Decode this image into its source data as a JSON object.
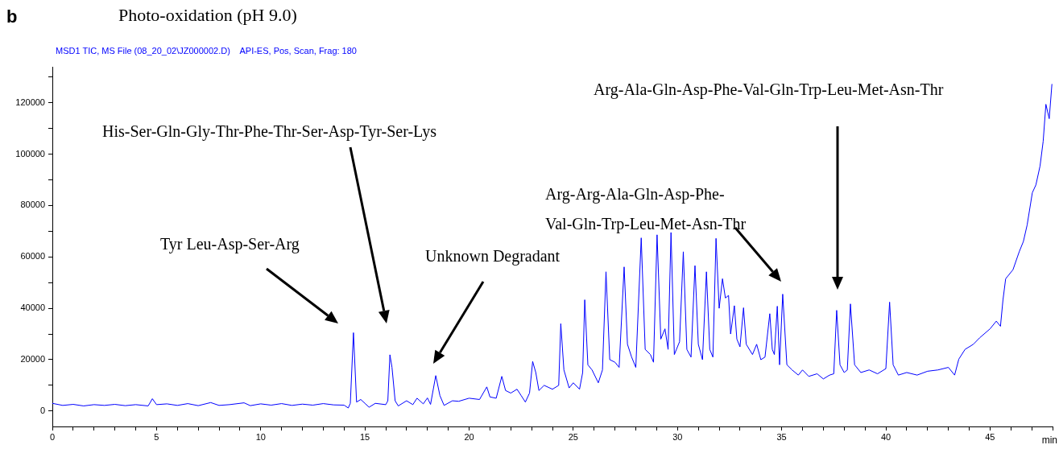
{
  "chart_data": {
    "type": "line",
    "title": "Photo-oxidation (pH 9.0)",
    "subtitle": "MSD1 TIC, MS File (08_20_02\\JZ000002.D)    API-ES, Pos, Scan, Frag: 180",
    "xlabel": "min",
    "annotations": [
      "b",
      "Tyr Leu-Asp-Ser-Arg",
      "His-Ser-Gln-Gly-Thr-Phe-Thr-Ser-Asp-Tyr-Ser-Lys",
      "Unknown Degradant",
      "Arg-Arg-Ala-Gln-Asp-Phe-\nVal-Gln-Trp-Leu-Met-Asn-Thr",
      "Arg-Ala-Gln-Asp-Phe-Val-Gln-Trp-Leu-Met-Asn-Thr"
    ],
    "x": [
      0,
      0.5,
      1,
      1.5,
      2,
      2.5,
      3,
      3.5,
      4,
      4.6,
      4.8,
      5,
      5.5,
      6,
      6.5,
      7,
      7.6,
      8,
      8.5,
      9.2,
      9.5,
      10,
      10.5,
      11,
      11.5,
      12,
      12.5,
      13,
      13.5,
      14,
      14.2,
      14.3,
      14.45,
      14.6,
      14.8,
      15,
      15.2,
      15.5,
      16,
      16.1,
      16.2,
      16.3,
      16.45,
      16.6,
      17,
      17.3,
      17.5,
      17.8,
      18,
      18.15,
      18.4,
      18.6,
      18.8,
      19.2,
      19.5,
      20,
      20.5,
      20.85,
      21,
      21.3,
      21.57,
      21.75,
      22,
      22.3,
      22.5,
      22.7,
      22.9,
      23.05,
      23.2,
      23.35,
      23.6,
      24,
      24.3,
      24.4,
      24.55,
      24.8,
      25,
      25.3,
      25.45,
      25.55,
      25.7,
      25.9,
      26.2,
      26.4,
      26.57,
      26.75,
      27,
      27.2,
      27.44,
      27.6,
      27.8,
      28,
      28.26,
      28.45,
      28.7,
      28.85,
      29.02,
      29.2,
      29.4,
      29.55,
      29.69,
      29.85,
      30.1,
      30.28,
      30.45,
      30.65,
      30.84,
      31,
      31.2,
      31.39,
      31.55,
      31.7,
      31.85,
      32,
      32.16,
      32.3,
      32.45,
      32.55,
      32.73,
      32.85,
      33,
      33.17,
      33.3,
      33.6,
      33.8,
      34,
      34.2,
      34.43,
      34.55,
      34.65,
      34.79,
      34.9,
      35.05,
      35.25,
      35.5,
      35.8,
      36,
      36.3,
      36.7,
      37,
      37.3,
      37.5,
      37.64,
      37.8,
      38,
      38.15,
      38.3,
      38.5,
      38.8,
      39.2,
      39.6,
      40,
      40.18,
      40.35,
      40.6,
      41,
      41.5,
      42,
      42.5,
      43,
      43.3,
      43.5,
      43.8,
      44.2,
      44.5,
      45,
      45.3,
      45.5,
      45.62,
      45.75,
      46.1,
      46.4,
      46.6,
      46.78,
      47.03,
      47.2,
      47.4,
      47.55,
      47.68,
      47.84,
      47.97
    ],
    "series": [
      {
        "color": "#0000ff",
        "values": [
          3000,
          2200,
          2600,
          2000,
          2500,
          2200,
          2600,
          2100,
          2500,
          2000,
          4800,
          2500,
          2800,
          2200,
          2900,
          2100,
          3300,
          2200,
          2500,
          3200,
          2100,
          2800,
          2300,
          2900,
          2200,
          2700,
          2300,
          2900,
          2400,
          2300,
          1200,
          3000,
          30500,
          3500,
          4500,
          3000,
          1500,
          3000,
          2500,
          4000,
          21900,
          17000,
          4000,
          2000,
          4000,
          2500,
          5000,
          2800,
          5100,
          2600,
          13800,
          6000,
          2200,
          4000,
          3800,
          5000,
          4500,
          9400,
          5500,
          5000,
          13500,
          8000,
          7000,
          8500,
          6000,
          3500,
          7000,
          19300,
          15000,
          8000,
          10000,
          8500,
          10000,
          34000,
          16000,
          9000,
          11000,
          8500,
          15000,
          43300,
          18000,
          16000,
          11000,
          16000,
          54200,
          20000,
          19000,
          17000,
          56100,
          26000,
          21000,
          17000,
          67400,
          24000,
          22000,
          19000,
          68600,
          28000,
          32000,
          24000,
          69500,
          22000,
          27000,
          62000,
          24000,
          21000,
          56600,
          26000,
          20000,
          54200,
          24000,
          21000,
          67200,
          40000,
          51500,
          44000,
          45000,
          30000,
          41000,
          28000,
          25000,
          40200,
          26000,
          22000,
          26000,
          20000,
          21000,
          37900,
          24000,
          22000,
          40800,
          18000,
          45500,
          18000,
          16000,
          14000,
          16000,
          13500,
          14500,
          12500,
          14000,
          14500,
          39200,
          18000,
          15000,
          16000,
          41700,
          18000,
          15000,
          16000,
          14500,
          16500,
          42400,
          18000,
          14000,
          15000,
          14000,
          15500,
          16000,
          17000,
          14000,
          20200,
          24000,
          26000,
          28500,
          32000,
          35000,
          33000,
          43200,
          51500,
          55000,
          62000,
          66000,
          72400,
          85000,
          88000,
          95400,
          105000,
          119400,
          113800,
          127300
        ]
      }
    ],
    "xlim": [
      0,
      48
    ],
    "ylim": [
      -6000,
      134000
    ],
    "xticks": [
      0,
      {
        "value": 1,
        "label": null
      },
      {
        "value": 2,
        "label": null
      },
      {
        "value": 3,
        "label": null
      },
      {
        "value": 4,
        "label": null
      },
      5,
      {
        "value": 6,
        "label": null
      },
      {
        "value": 7,
        "label": null
      },
      {
        "value": 8,
        "label": null
      },
      {
        "value": 9,
        "label": null
      },
      10,
      {
        "value": 11,
        "label": null
      },
      {
        "value": 12,
        "label": null
      },
      {
        "value": 13,
        "label": null
      },
      {
        "value": 14,
        "label": null
      },
      15,
      {
        "value": 16,
        "label": null
      },
      {
        "value": 17,
        "label": null
      },
      {
        "value": 18,
        "label": null
      },
      {
        "value": 19,
        "label": null
      },
      20,
      {
        "value": 21,
        "label": null
      },
      {
        "value": 22,
        "label": null
      },
      {
        "value": 23,
        "label": null
      },
      {
        "value": 24,
        "label": null
      },
      25,
      {
        "value": 26,
        "label": null
      },
      {
        "value": 27,
        "label": null
      },
      {
        "value": 28,
        "label": null
      },
      {
        "value": 29,
        "label": null
      },
      30,
      {
        "value": 31,
        "label": null
      },
      {
        "value": 32,
        "label": null
      },
      {
        "value": 33,
        "label": null
      },
      {
        "value": 34,
        "label": null
      },
      35,
      {
        "value": 36,
        "label": null
      },
      {
        "value": 37,
        "label": null
      },
      {
        "value": 38,
        "label": null
      },
      {
        "value": 39,
        "label": null
      },
      40,
      {
        "value": 41,
        "label": null
      },
      {
        "value": 42,
        "label": null
      },
      {
        "value": 43,
        "label": null
      },
      {
        "value": 44,
        "label": null
      },
      45,
      {
        "value": 46,
        "label": null
      },
      {
        "value": 47,
        "label": null
      },
      {
        "value": 48,
        "label": null
      }
    ],
    "yticks": [
      0,
      {
        "value": 10000,
        "label": null
      },
      20000,
      {
        "value": 30000,
        "label": null
      },
      40000,
      {
        "value": 50000,
        "label": null
      },
      60000,
      {
        "value": 70000,
        "label": null
      },
      80000,
      {
        "value": 90000,
        "label": null
      },
      100000,
      {
        "value": 110000,
        "label": null
      },
      120000,
      {
        "value": 130000,
        "label": null
      }
    ],
    "grid": false,
    "legend": false,
    "marker": "none",
    "line_style": "solid"
  }
}
